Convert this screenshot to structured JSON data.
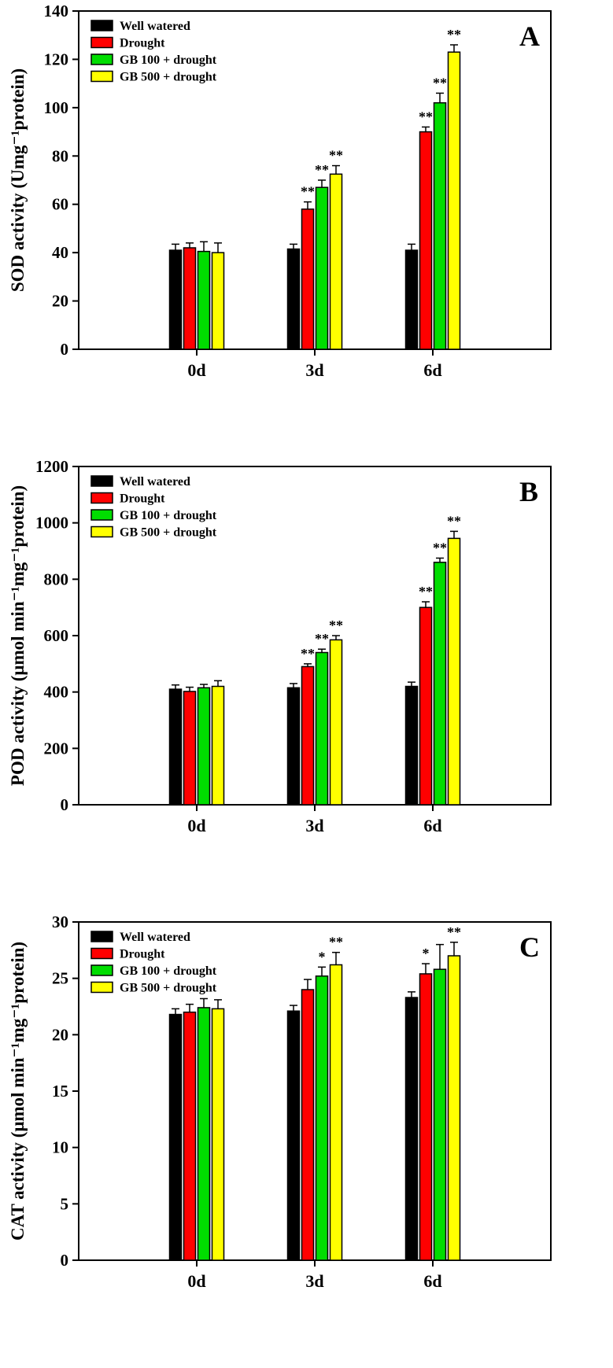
{
  "figure": {
    "background": "#ffffff",
    "axis_color": "#000000",
    "error_bar_color": "#000000"
  },
  "chart_data": [
    {
      "type": "bar",
      "panel_label": "A",
      "ylabel": "SOD activity (Umg⁻¹protein)",
      "xlabel": "",
      "ylim": [
        0,
        140
      ],
      "ytick_step": 20,
      "grid": false,
      "legend_position": "top-left",
      "categories": [
        "0d",
        "3d",
        "6d"
      ],
      "series": [
        {
          "name": "Well watered",
          "color": "#000000",
          "values": [
            41,
            41.5,
            41
          ],
          "errors": [
            2.5,
            2,
            2.5
          ],
          "sig": [
            "",
            "",
            ""
          ]
        },
        {
          "name": "Drought",
          "color": "#ff0000",
          "values": [
            42,
            58,
            90
          ],
          "errors": [
            2,
            3,
            2
          ],
          "sig": [
            "",
            "**",
            "**"
          ]
        },
        {
          "name": "GB 100 + drought",
          "color": "#00dd00",
          "values": [
            40.5,
            67,
            102
          ],
          "errors": [
            4,
            3,
            4
          ],
          "sig": [
            "",
            "**",
            "**"
          ]
        },
        {
          "name": "GB 500 + drought",
          "color": "#ffff00",
          "values": [
            40,
            72.5,
            123
          ],
          "errors": [
            4,
            3.5,
            3
          ],
          "sig": [
            "",
            "**",
            "**"
          ]
        }
      ]
    },
    {
      "type": "bar",
      "panel_label": "B",
      "ylabel": "POD activity (μmol min⁻¹mg⁻¹protein)",
      "xlabel": "",
      "ylim": [
        0,
        1200
      ],
      "ytick_step": 200,
      "grid": false,
      "legend_position": "top-left",
      "categories": [
        "0d",
        "3d",
        "6d"
      ],
      "series": [
        {
          "name": "Well watered",
          "color": "#000000",
          "values": [
            410,
            415,
            420
          ],
          "errors": [
            15,
            15,
            15
          ],
          "sig": [
            "",
            "",
            ""
          ]
        },
        {
          "name": "Drought",
          "color": "#ff0000",
          "values": [
            402,
            490,
            700
          ],
          "errors": [
            15,
            10,
            20
          ],
          "sig": [
            "",
            "**",
            "**"
          ]
        },
        {
          "name": "GB 100 + drought",
          "color": "#00dd00",
          "values": [
            415,
            540,
            860
          ],
          "errors": [
            12,
            12,
            15
          ],
          "sig": [
            "",
            "**",
            "**"
          ]
        },
        {
          "name": "GB 500 + drought",
          "color": "#ffff00",
          "values": [
            420,
            585,
            945
          ],
          "errors": [
            20,
            15,
            25
          ],
          "sig": [
            "",
            "**",
            "**"
          ]
        }
      ]
    },
    {
      "type": "bar",
      "panel_label": "C",
      "ylabel": "CAT activity (μmol min⁻¹mg⁻¹protein)",
      "xlabel": "",
      "ylim": [
        0,
        30
      ],
      "ytick_step": 5,
      "grid": false,
      "legend_position": "top-left",
      "categories": [
        "0d",
        "3d",
        "6d"
      ],
      "series": [
        {
          "name": "Well watered",
          "color": "#000000",
          "values": [
            21.8,
            22.1,
            23.3
          ],
          "errors": [
            0.5,
            0.5,
            0.5
          ],
          "sig": [
            "",
            "",
            ""
          ]
        },
        {
          "name": "Drought",
          "color": "#ff0000",
          "values": [
            22,
            24,
            25.4
          ],
          "errors": [
            0.7,
            0.9,
            0.9
          ],
          "sig": [
            "",
            "",
            "*"
          ]
        },
        {
          "name": "GB 100 + drought",
          "color": "#00dd00",
          "values": [
            22.4,
            25.2,
            25.8
          ],
          "errors": [
            0.8,
            0.8,
            2.2
          ],
          "sig": [
            "",
            "*",
            ""
          ]
        },
        {
          "name": "GB 500 + drought",
          "color": "#ffff00",
          "values": [
            22.3,
            26.2,
            27
          ],
          "errors": [
            0.8,
            1.1,
            1.2
          ],
          "sig": [
            "",
            "**",
            "**"
          ]
        }
      ]
    }
  ]
}
